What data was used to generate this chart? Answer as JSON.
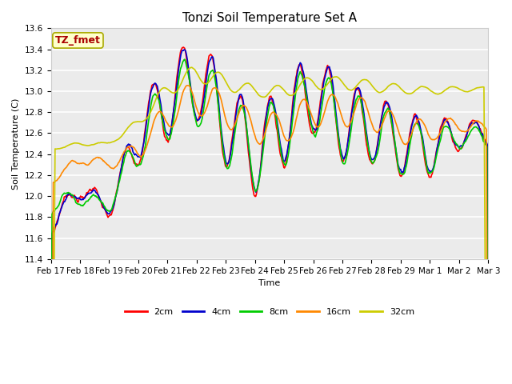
{
  "title": "Tonzi Soil Temperature Set A",
  "xlabel": "Time",
  "ylabel": "Soil Temperature (C)",
  "ylim": [
    11.4,
    13.6
  ],
  "annotation": "TZ_fmet",
  "line_colors": {
    "2cm": "#FF0000",
    "4cm": "#0000CC",
    "8cm": "#00CC00",
    "16cm": "#FF8800",
    "32cm": "#CCCC00"
  },
  "line_width": 1.2,
  "xtick_labels": [
    "Feb 17",
    "Feb 18",
    "Feb 19",
    "Feb 20",
    "Feb 21",
    "Feb 22",
    "Feb 23",
    "Feb 24",
    "Feb 25",
    "Feb 26",
    "Feb 27",
    "Feb 28",
    "Feb 29",
    "Mar 1",
    "Mar 2",
    "Mar 3"
  ],
  "fig_bg_color": "#FFFFFF",
  "plot_bg_color": "#EBEBEB",
  "grid_color": "#FFFFFF",
  "title_fontsize": 11,
  "axis_label_fontsize": 8,
  "tick_fontsize": 7.5,
  "legend_fontsize": 8,
  "yticks": [
    11.4,
    11.6,
    11.8,
    12.0,
    12.2,
    12.4,
    12.6,
    12.8,
    13.0,
    13.2,
    13.4,
    13.6
  ]
}
